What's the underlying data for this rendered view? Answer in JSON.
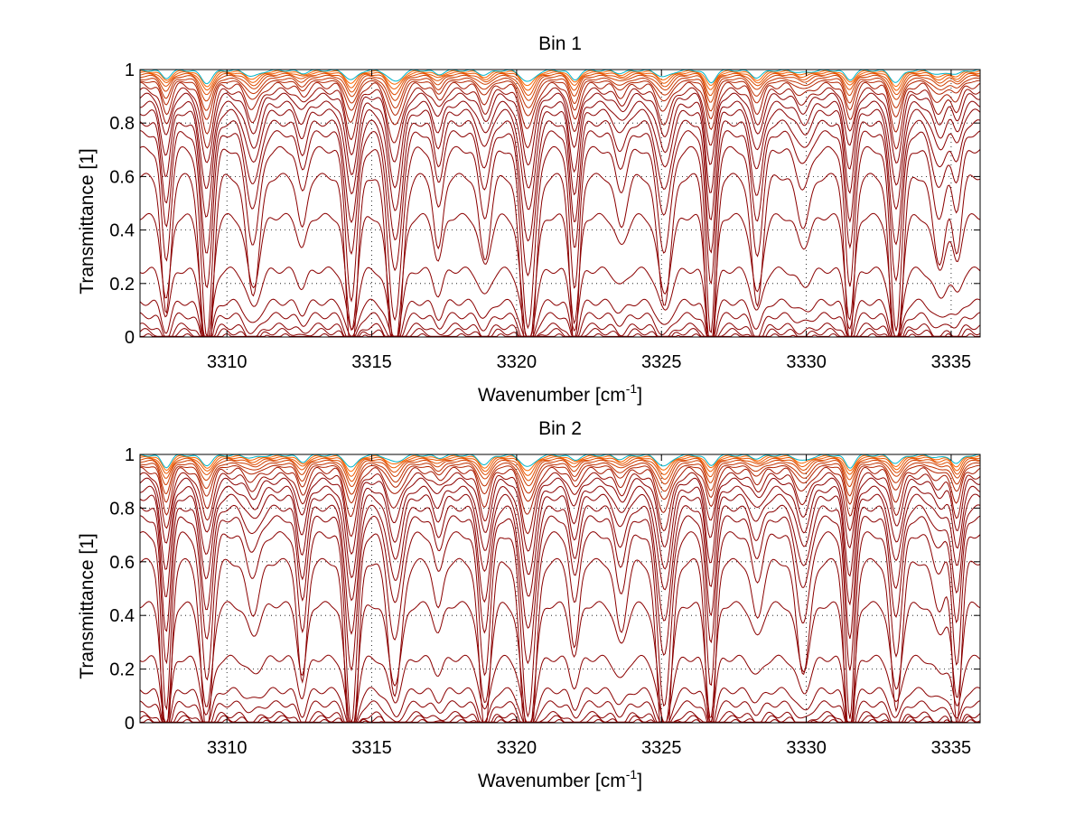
{
  "chart_data": [
    {
      "type": "line",
      "title": "Bin 1",
      "xlabel": "Wavenumber [cm",
      "xlabel_sup": "-1",
      "xlabel_end": "]",
      "ylabel": "Transmittance [1]",
      "xlim": [
        3307,
        3336
      ],
      "ylim": [
        0,
        1
      ],
      "xticks": [
        3310,
        3315,
        3320,
        3325,
        3330,
        3335
      ],
      "yticks": [
        0,
        0.2,
        0.4,
        0.6,
        0.8,
        1
      ],
      "xtick_labels": [
        "3310",
        "3315",
        "3320",
        "3325",
        "3330",
        "3335"
      ],
      "ytick_labels": [
        "0",
        "0.2",
        "0.4",
        "0.6",
        "0.8",
        "1"
      ],
      "grid": true,
      "absorption_lines_cm-1": [
        3307.9,
        3309.3,
        3310.9,
        3312.6,
        3314.3,
        3315.8,
        3317.3,
        3318.9,
        3320.4,
        3322.0,
        3323.6,
        3325.1,
        3326.7,
        3328.3,
        3329.9,
        3331.5,
        3333.1,
        3334.6,
        3335.2
      ],
      "curve_baselines": [
        0.0,
        0.02,
        0.04,
        0.08,
        0.13,
        0.25,
        0.45,
        0.6,
        0.7,
        0.76,
        0.8,
        0.84,
        0.87,
        0.9,
        0.92,
        0.94,
        0.955,
        0.965,
        0.975,
        0.982,
        0.988,
        0.993,
        0.997
      ]
    },
    {
      "type": "line",
      "title": "Bin 2",
      "xlabel": "Wavenumber [cm",
      "xlabel_sup": "-1",
      "xlabel_end": "]",
      "ylabel": "Transmittance [1]",
      "xlim": [
        3307,
        3336
      ],
      "ylim": [
        0,
        1
      ],
      "xticks": [
        3310,
        3315,
        3320,
        3325,
        3330,
        3335
      ],
      "yticks": [
        0,
        0.2,
        0.4,
        0.6,
        0.8,
        1
      ],
      "xtick_labels": [
        "3310",
        "3315",
        "3320",
        "3325",
        "3330",
        "3335"
      ],
      "ytick_labels": [
        "0",
        "0.2",
        "0.4",
        "0.6",
        "0.8",
        "1"
      ],
      "grid": true,
      "absorption_lines_cm-1": [
        3307.9,
        3309.3,
        3310.9,
        3312.6,
        3314.3,
        3315.8,
        3317.3,
        3318.9,
        3320.4,
        3322.0,
        3323.6,
        3325.1,
        3326.7,
        3328.3,
        3329.9,
        3331.5,
        3333.1,
        3334.6,
        3335.2
      ],
      "curve_baselines": [
        0.0,
        0.015,
        0.03,
        0.07,
        0.12,
        0.24,
        0.44,
        0.6,
        0.7,
        0.76,
        0.8,
        0.84,
        0.87,
        0.9,
        0.92,
        0.94,
        0.955,
        0.965,
        0.975,
        0.982,
        0.988,
        0.993,
        0.997
      ]
    }
  ],
  "colors": {
    "low_curves": "#8b0000",
    "high_curves": "#ff6a00",
    "top_curves": "#00b4c8",
    "axis": "#000000"
  }
}
